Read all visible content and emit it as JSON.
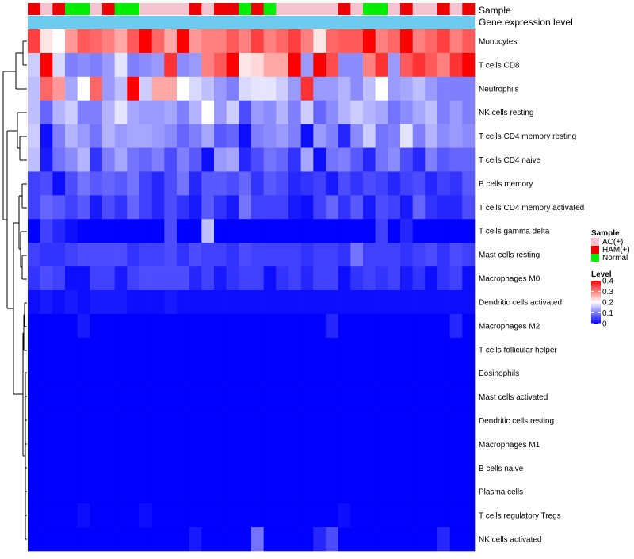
{
  "chart_data": {
    "type": "heatmap",
    "title": "",
    "annotation_tracks": [
      "Sample",
      "Gene expression level"
    ],
    "rows": [
      "Monocytes",
      "T cells CD8",
      "Neutrophils",
      "NK cells resting",
      "T cells CD4 memory resting",
      "T cells CD4 naive",
      "B cells memory",
      "T cells CD4 memory activated",
      "T cells gamma delta",
      "Mast cells resting",
      "Macrophages M0",
      "Dendritic cells activated",
      "Macrophages M2",
      "T cells follicular helper",
      "Eosinophils",
      "Mast cells activated",
      "Dendritic cells resting",
      "Macrophages M1",
      "B cells naive",
      "Plasma cells",
      "T cells regulatory  Tregs",
      "NK cells activated"
    ],
    "sample_groups": [
      "HAM(+)",
      "AC(+)",
      "HAM(+)",
      "Normal",
      "Normal",
      "AC(+)",
      "HAM(+)",
      "Normal",
      "Normal",
      "AC(+)",
      "AC(+)",
      "AC(+)",
      "AC(+)",
      "HAM(+)",
      "AC(+)",
      "HAM(+)",
      "HAM(+)",
      "Normal",
      "HAM(+)",
      "Normal",
      "AC(+)",
      "AC(+)",
      "AC(+)",
      "AC(+)",
      "AC(+)",
      "HAM(+)",
      "AC(+)",
      "Normal",
      "Normal",
      "AC(+)",
      "HAM(+)",
      "AC(+)",
      "AC(+)",
      "HAM(+)",
      "AC(+)",
      "HAM(+)"
    ],
    "values": [
      [
        0.35,
        0.22,
        0.2,
        0.28,
        0.33,
        0.32,
        0.3,
        0.27,
        0.33,
        0.4,
        0.32,
        0.27,
        0.4,
        0.28,
        0.3,
        0.3,
        0.33,
        0.3,
        0.35,
        0.3,
        0.32,
        0.35,
        0.3,
        0.22,
        0.32,
        0.33,
        0.33,
        0.4,
        0.3,
        0.32,
        0.4,
        0.3,
        0.32,
        0.35,
        0.3,
        0.33
      ],
      [
        0.16,
        0.4,
        0.17,
        0.1,
        0.11,
        0.1,
        0.12,
        0.18,
        0.1,
        0.11,
        0.12,
        0.36,
        0.11,
        0.12,
        0.3,
        0.33,
        0.4,
        0.22,
        0.23,
        0.27,
        0.27,
        0.4,
        0.12,
        0.4,
        0.34,
        0.11,
        0.11,
        0.3,
        0.36,
        0.12,
        0.33,
        0.36,
        0.33,
        0.3,
        0.36,
        0.4
      ],
      [
        0.15,
        0.32,
        0.28,
        0.13,
        0.2,
        0.32,
        0.12,
        0.15,
        0.4,
        0.16,
        0.27,
        0.27,
        0.2,
        0.17,
        0.15,
        0.12,
        0.1,
        0.17,
        0.18,
        0.18,
        0.16,
        0.12,
        0.36,
        0.12,
        0.12,
        0.14,
        0.11,
        0.15,
        0.2,
        0.12,
        0.13,
        0.15,
        0.12,
        0.1,
        0.1,
        0.1
      ],
      [
        0.15,
        0.08,
        0.14,
        0.16,
        0.1,
        0.1,
        0.14,
        0.18,
        0.13,
        0.12,
        0.12,
        0.13,
        0.1,
        0.14,
        0.2,
        0.12,
        0.16,
        0.06,
        0.12,
        0.11,
        0.14,
        0.1,
        0.16,
        0.08,
        0.11,
        0.14,
        0.16,
        0.14,
        0.13,
        0.09,
        0.11,
        0.13,
        0.15,
        0.1,
        0.12,
        0.1
      ],
      [
        0.16,
        0.01,
        0.1,
        0.14,
        0.12,
        0.09,
        0.14,
        0.12,
        0.13,
        0.13,
        0.12,
        0.11,
        0.08,
        0.1,
        0.13,
        0.07,
        0.08,
        0.01,
        0.1,
        0.11,
        0.12,
        0.1,
        0.01,
        0.12,
        0.1,
        0.03,
        0.11,
        0.16,
        0.09,
        0.1,
        0.18,
        0.1,
        0.14,
        0.11,
        0.12,
        0.11
      ],
      [
        0.15,
        0.02,
        0.09,
        0.11,
        0.14,
        0.04,
        0.1,
        0.13,
        0.09,
        0.08,
        0.1,
        0.06,
        0.1,
        0.07,
        0.01,
        0.12,
        0.13,
        0.03,
        0.06,
        0.09,
        0.08,
        0.04,
        0.13,
        0.01,
        0.09,
        0.1,
        0.07,
        0.03,
        0.09,
        0.11,
        0.06,
        0.03,
        0.1,
        0.07,
        0.08,
        0.08
      ],
      [
        0.05,
        0.06,
        0.01,
        0.06,
        0.09,
        0.07,
        0.08,
        0.07,
        0.09,
        0.05,
        0.03,
        0.06,
        0.09,
        0.03,
        0.07,
        0.07,
        0.06,
        0.08,
        0.04,
        0.07,
        0.06,
        0.03,
        0.04,
        0.05,
        0.02,
        0.06,
        0.04,
        0.06,
        0.05,
        0.03,
        0.05,
        0.06,
        0.03,
        0.05,
        0.04,
        0.07
      ],
      [
        0.05,
        0.08,
        0.07,
        0.05,
        0.07,
        0.02,
        0.06,
        0.04,
        0.08,
        0.05,
        0.03,
        0.06,
        0.04,
        0.02,
        0.07,
        0.04,
        0.02,
        0.09,
        0.05,
        0.05,
        0.05,
        0.02,
        0.01,
        0.05,
        0.08,
        0.04,
        0.07,
        0.02,
        0.06,
        0.05,
        0.02,
        0.08,
        0.04,
        0.03,
        0.03,
        0.06
      ],
      [
        0.0,
        0.05,
        0.03,
        0.01,
        0.0,
        0.0,
        0.0,
        0.0,
        0.0,
        0.0,
        0.0,
        0.06,
        0.0,
        0.0,
        0.15,
        0.0,
        0.0,
        0.0,
        0.0,
        0.0,
        0.0,
        0.0,
        0.0,
        0.0,
        0.0,
        0.0,
        0.0,
        0.0,
        0.05,
        0.0,
        0.03,
        0.0,
        0.0,
        0.0,
        0.0,
        0.0
      ],
      [
        0.05,
        0.04,
        0.04,
        0.05,
        0.06,
        0.06,
        0.06,
        0.06,
        0.04,
        0.05,
        0.05,
        0.06,
        0.04,
        0.06,
        0.05,
        0.05,
        0.04,
        0.06,
        0.05,
        0.05,
        0.05,
        0.05,
        0.04,
        0.05,
        0.05,
        0.04,
        0.09,
        0.05,
        0.05,
        0.05,
        0.04,
        0.05,
        0.06,
        0.04,
        0.06,
        0.05
      ],
      [
        0.04,
        0.06,
        0.05,
        0.01,
        0.01,
        0.05,
        0.05,
        0.02,
        0.05,
        0.06,
        0.06,
        0.06,
        0.06,
        0.03,
        0.05,
        0.02,
        0.04,
        0.05,
        0.05,
        0.01,
        0.04,
        0.05,
        0.03,
        0.05,
        0.05,
        0.01,
        0.04,
        0.05,
        0.04,
        0.05,
        0.02,
        0.04,
        0.01,
        0.04,
        0.05,
        0.01
      ],
      [
        0.01,
        0.02,
        0.01,
        0.02,
        0.01,
        0.02,
        0.02,
        0.02,
        0.01,
        0.01,
        0.01,
        0.02,
        0.01,
        0.01,
        0.01,
        0.01,
        0.01,
        0.01,
        0.01,
        0.01,
        0.01,
        0.01,
        0.01,
        0.01,
        0.01,
        0.01,
        0.01,
        0.01,
        0.01,
        0.01,
        0.01,
        0.01,
        0.01,
        0.01,
        0.01,
        0.01
      ],
      [
        0.0,
        0.0,
        0.0,
        0.0,
        0.02,
        0.0,
        0.0,
        0.0,
        0.0,
        0.0,
        0.0,
        0.0,
        0.0,
        0.0,
        0.0,
        0.0,
        0.0,
        0.0,
        0.0,
        0.0,
        0.0,
        0.0,
        0.0,
        0.0,
        0.03,
        0.0,
        0.0,
        0.0,
        0.0,
        0.0,
        0.0,
        0.0,
        0.0,
        0.0,
        0.03,
        0.0
      ],
      [
        0.0,
        0.0,
        0.0,
        0.0,
        0.0,
        0.0,
        0.0,
        0.0,
        0.0,
        0.0,
        0.0,
        0.0,
        0.0,
        0.0,
        0.0,
        0.0,
        0.0,
        0.0,
        0.0,
        0.0,
        0.0,
        0.0,
        0.0,
        0.0,
        0.0,
        0.0,
        0.0,
        0.0,
        0.0,
        0.0,
        0.0,
        0.0,
        0.0,
        0.0,
        0.0,
        0.0
      ],
      [
        0.0,
        0.0,
        0.0,
        0.0,
        0.0,
        0.0,
        0.0,
        0.0,
        0.0,
        0.0,
        0.0,
        0.0,
        0.0,
        0.0,
        0.0,
        0.0,
        0.0,
        0.0,
        0.0,
        0.0,
        0.0,
        0.0,
        0.0,
        0.0,
        0.0,
        0.0,
        0.0,
        0.0,
        0.0,
        0.0,
        0.0,
        0.0,
        0.0,
        0.0,
        0.0,
        0.0
      ],
      [
        0.0,
        0.0,
        0.0,
        0.0,
        0.0,
        0.0,
        0.0,
        0.0,
        0.0,
        0.0,
        0.0,
        0.0,
        0.0,
        0.0,
        0.0,
        0.0,
        0.0,
        0.0,
        0.0,
        0.0,
        0.0,
        0.0,
        0.0,
        0.0,
        0.0,
        0.0,
        0.0,
        0.0,
        0.0,
        0.0,
        0.0,
        0.0,
        0.0,
        0.0,
        0.0,
        0.0
      ],
      [
        0.0,
        0.0,
        0.0,
        0.0,
        0.0,
        0.0,
        0.0,
        0.0,
        0.0,
        0.0,
        0.0,
        0.0,
        0.0,
        0.0,
        0.0,
        0.0,
        0.0,
        0.0,
        0.0,
        0.0,
        0.0,
        0.0,
        0.0,
        0.0,
        0.0,
        0.0,
        0.0,
        0.0,
        0.0,
        0.0,
        0.0,
        0.0,
        0.0,
        0.0,
        0.0,
        0.0
      ],
      [
        0.0,
        0.0,
        0.0,
        0.0,
        0.0,
        0.0,
        0.0,
        0.0,
        0.0,
        0.0,
        0.0,
        0.0,
        0.0,
        0.0,
        0.0,
        0.0,
        0.0,
        0.0,
        0.0,
        0.0,
        0.0,
        0.0,
        0.0,
        0.0,
        0.0,
        0.0,
        0.0,
        0.0,
        0.0,
        0.0,
        0.0,
        0.0,
        0.0,
        0.0,
        0.0,
        0.0
      ],
      [
        0.0,
        0.0,
        0.0,
        0.0,
        0.0,
        0.0,
        0.0,
        0.0,
        0.0,
        0.0,
        0.0,
        0.0,
        0.0,
        0.0,
        0.0,
        0.0,
        0.0,
        0.0,
        0.0,
        0.0,
        0.0,
        0.0,
        0.0,
        0.0,
        0.0,
        0.0,
        0.0,
        0.0,
        0.0,
        0.0,
        0.0,
        0.0,
        0.0,
        0.0,
        0.0,
        0.0
      ],
      [
        0.0,
        0.0,
        0.0,
        0.0,
        0.0,
        0.0,
        0.0,
        0.0,
        0.0,
        0.0,
        0.0,
        0.0,
        0.0,
        0.0,
        0.0,
        0.0,
        0.0,
        0.0,
        0.0,
        0.0,
        0.0,
        0.0,
        0.0,
        0.0,
        0.0,
        0.0,
        0.0,
        0.0,
        0.0,
        0.0,
        0.0,
        0.0,
        0.0,
        0.0,
        0.0,
        0.0
      ],
      [
        0.0,
        0.0,
        0.0,
        0.0,
        0.01,
        0.0,
        0.0,
        0.0,
        0.0,
        0.01,
        0.0,
        0.0,
        0.0,
        0.0,
        0.0,
        0.0,
        0.0,
        0.0,
        0.0,
        0.0,
        0.0,
        0.0,
        0.0,
        0.0,
        0.0,
        0.01,
        0.0,
        0.0,
        0.0,
        0.0,
        0.0,
        0.0,
        0.0,
        0.0,
        0.0,
        0.0
      ],
      [
        0.0,
        0.0,
        0.0,
        0.0,
        0.0,
        0.0,
        0.0,
        0.0,
        0.0,
        0.0,
        0.0,
        0.0,
        0.0,
        0.02,
        0.0,
        0.0,
        0.0,
        0.0,
        0.09,
        0.0,
        0.0,
        0.0,
        0.0,
        0.03,
        0.06,
        0.0,
        0.0,
        0.0,
        0.0,
        0.0,
        0.0,
        0.0,
        0.0,
        0.03,
        0.0,
        0.0
      ]
    ],
    "expression_track_color": "#6ECBEF",
    "legends": {
      "sample": {
        "title": "Sample",
        "items": [
          {
            "label": "AC(+)",
            "color": "#F6C3D0"
          },
          {
            "label": "HAM(+)",
            "color": "#EE0000"
          },
          {
            "label": "Normal",
            "color": "#00EE00"
          }
        ]
      },
      "level": {
        "title": "Level",
        "ticks": [
          0.4,
          0.3,
          0.2,
          0.1,
          0
        ],
        "tick_labels": [
          "0.4",
          "0.3",
          "0.2",
          "0.1",
          "0"
        ],
        "range": [
          0,
          0.4
        ],
        "colors": {
          "low": "#0000FF",
          "mid": "#FFFFFF",
          "high": "#FF0000",
          "mid_value": 0.2
        }
      }
    }
  }
}
